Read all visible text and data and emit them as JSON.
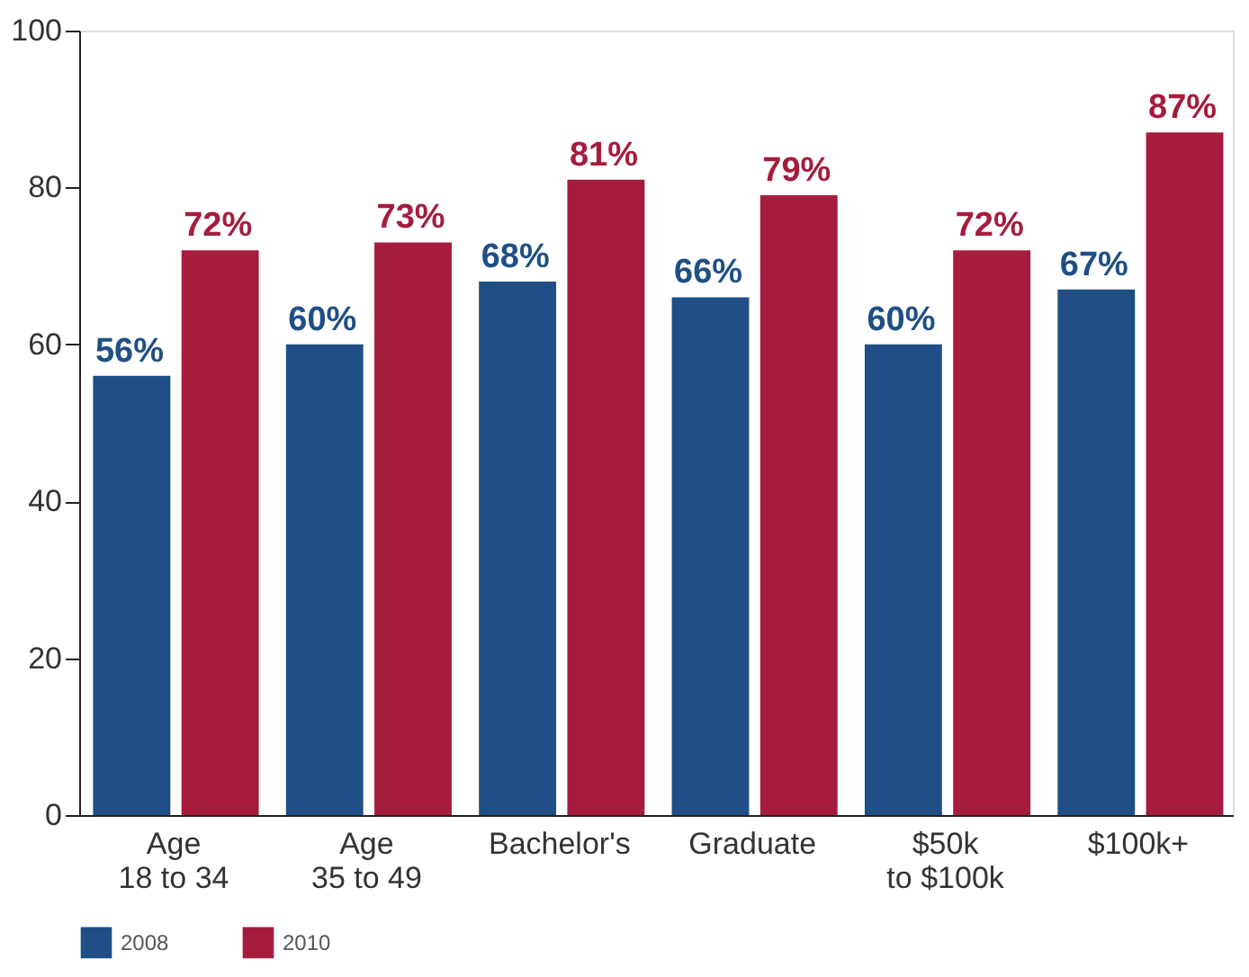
{
  "chart_data": {
    "type": "bar",
    "categories": [
      "Age\n18 to 34",
      "Age\n35 to 49",
      "Bachelor's",
      "Graduate",
      "$50k\nto $100k",
      "$100k+"
    ],
    "series": [
      {
        "name": "2008",
        "color": "#1f4f86",
        "values": [
          56,
          60,
          68,
          66,
          60,
          67
        ],
        "value_labels": [
          "56%",
          "60%",
          "68%",
          "66%",
          "60%",
          "67%"
        ]
      },
      {
        "name": "2010",
        "color": "#a61c3c",
        "values": [
          72,
          73,
          81,
          79,
          72,
          87
        ],
        "value_labels": [
          "72%",
          "73%",
          "81%",
          "79%",
          "72%",
          "87%"
        ]
      }
    ],
    "ylim": [
      0,
      100
    ],
    "yticks": [
      0,
      20,
      40,
      60,
      80,
      100
    ],
    "grid": false,
    "legend": "bottom"
  }
}
